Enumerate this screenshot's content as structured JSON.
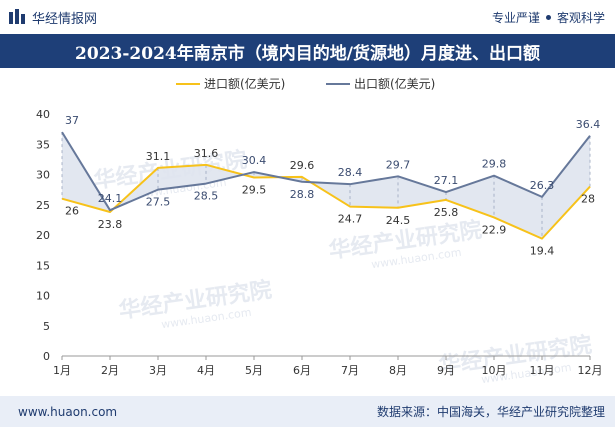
{
  "header": {
    "brand": "华经情报网",
    "slogan_left": "专业严谨",
    "slogan_right": "客观科学"
  },
  "title": "2023-2024年南京市（境内目的地/货源地）月度进、出口额",
  "footer": {
    "url": "www.huaon.com",
    "source": "数据来源：中国海关，华经产业研究院整理"
  },
  "watermark": "华经产业研究院",
  "watermark_url": "www.huaon.com",
  "colors": {
    "import": "#f7c21a",
    "export": "#66789a",
    "fill": "#dfe4ee",
    "title_bg": "#1e3f78"
  },
  "chart_data": {
    "type": "line",
    "categories": [
      "1月",
      "2月",
      "3月",
      "4月",
      "5月",
      "6月",
      "7月",
      "8月",
      "9月",
      "10月",
      "11月",
      "12月"
    ],
    "series": [
      {
        "name": "进口额(亿美元)",
        "values": [
          26,
          23.8,
          31.1,
          31.6,
          29.5,
          29.6,
          24.7,
          24.5,
          25.8,
          22.9,
          19.4,
          28
        ]
      },
      {
        "name": "出口额(亿美元)",
        "values": [
          37,
          24.1,
          27.5,
          28.5,
          30.4,
          28.8,
          28.4,
          29.7,
          27.1,
          29.8,
          26.3,
          36.4
        ]
      }
    ],
    "ylim": [
      0,
      40
    ],
    "yticks": [
      0,
      5,
      10,
      15,
      20,
      25,
      30,
      35,
      40
    ],
    "legend": "top-center",
    "grid": false
  }
}
